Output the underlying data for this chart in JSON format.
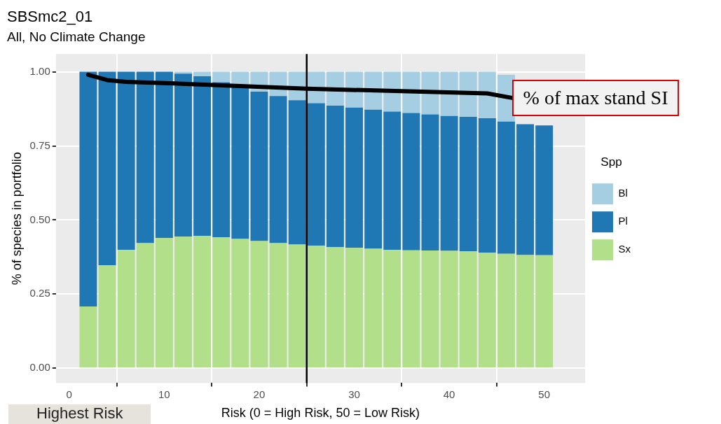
{
  "chart_data": {
    "type": "bar",
    "title": "SBSmc2_01",
    "subtitle": "All, No Climate Change",
    "xlabel": "Risk (0 = High Risk, 50 = Low Risk)",
    "ylabel": "% of species in portfolio",
    "legend_title": "Spp",
    "stacked": true,
    "grid": true,
    "legend": "right",
    "marker": "none",
    "x": [
      2,
      4,
      6,
      8,
      10,
      12,
      14,
      16,
      18,
      20,
      22,
      24,
      26,
      28,
      30,
      32,
      34,
      36,
      38,
      40,
      42,
      44,
      46,
      48,
      50
    ],
    "series": [
      {
        "name": "Sx",
        "color": "#b2df8a",
        "values": [
          0.208,
          0.347,
          0.399,
          0.422,
          0.439,
          0.444,
          0.446,
          0.442,
          0.436,
          0.429,
          0.422,
          0.417,
          0.413,
          0.409,
          0.406,
          0.403,
          0.399,
          0.398,
          0.397,
          0.396,
          0.394,
          0.39,
          0.386,
          0.382,
          0.381
        ]
      },
      {
        "name": "Pl",
        "color": "#1f78b4",
        "values": [
          0.792,
          0.653,
          0.601,
          0.578,
          0.561,
          0.55,
          0.539,
          0.523,
          0.519,
          0.504,
          0.496,
          0.487,
          0.481,
          0.477,
          0.473,
          0.469,
          0.467,
          0.463,
          0.459,
          0.455,
          0.454,
          0.453,
          0.446,
          0.441,
          0.438
        ]
      },
      {
        "name": "Bl",
        "color": "#a6cee3",
        "values": [
          0,
          0,
          0,
          0,
          0,
          0.006,
          0.015,
          0.035,
          0.045,
          0.067,
          0.082,
          0.096,
          0.106,
          0.114,
          0.121,
          0.128,
          0.134,
          0.139,
          0.144,
          0.149,
          0.152,
          0.157,
          0.158,
          null,
          null
        ]
      },
      {
        "name": "% of max stand SI",
        "type": "line",
        "color": "#000000",
        "x": [
          2,
          4,
          6,
          10,
          25,
          44,
          46.6
        ],
        "values": [
          0.99,
          0.972,
          0.966,
          0.962,
          0.943,
          0.927,
          0.912
        ]
      }
    ],
    "xlim": [
      -1.4,
      54.3
    ],
    "ylim": [
      -0.05,
      1.06
    ],
    "xticks": [
      0,
      10,
      20,
      30,
      40,
      50
    ],
    "yticks": [
      {
        "value": 0,
        "label": "0.00"
      },
      {
        "value": 0.25,
        "label": "0.25"
      },
      {
        "value": 0.5,
        "label": "0.50"
      },
      {
        "value": 0.75,
        "label": "0.75"
      },
      {
        "value": 1,
        "label": "1.00"
      }
    ],
    "ref_lines": [
      {
        "axis": "x",
        "value": 25,
        "color": "#000000"
      }
    ],
    "annotations": [
      "Highest Risk"
    ]
  }
}
